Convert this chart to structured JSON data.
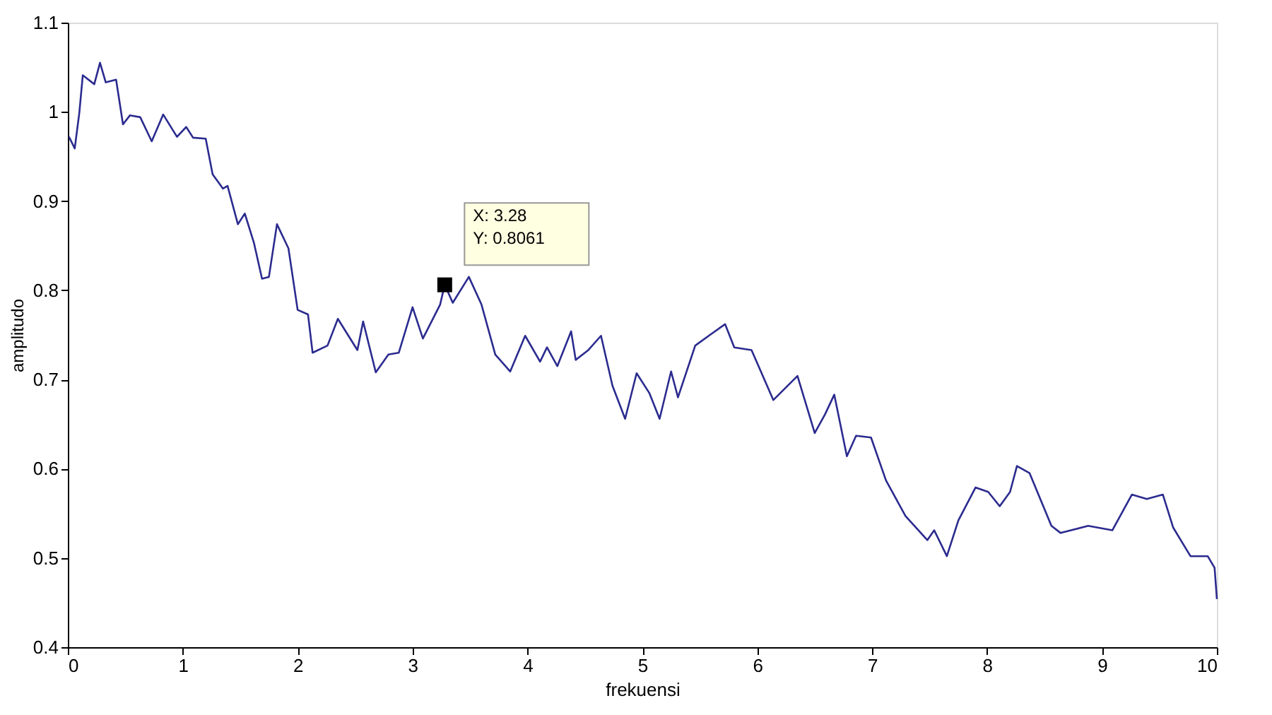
{
  "chart_data": {
    "type": "line",
    "xlabel": "frekuensi",
    "ylabel": "amplitudo",
    "xlim": [
      0,
      10
    ],
    "ylim": [
      0.4,
      1.1
    ],
    "xticks": [
      0,
      1,
      2,
      3,
      4,
      5,
      6,
      7,
      8,
      9,
      10
    ],
    "yticks": [
      0.4,
      0.5,
      0.6,
      0.7,
      0.8,
      0.9,
      1,
      1.1
    ],
    "grid": false,
    "marker": "none",
    "line_style": "solid",
    "annotations": [
      {
        "text": "X: 3.28\nY: 0.8061",
        "x": 3.28,
        "y": 0.8061
      }
    ],
    "series": [
      {
        "color": "#2b2b8f",
        "x": [
          0.01,
          0.06,
          0.1,
          0.13,
          0.23,
          0.28,
          0.33,
          0.42,
          0.48,
          0.54,
          0.63,
          0.73,
          0.83,
          0.95,
          1.03,
          1.09,
          1.2,
          1.26,
          1.35,
          1.39,
          1.48,
          1.54,
          1.62,
          1.69,
          1.75,
          1.82,
          1.92,
          2.0,
          2.09,
          2.13,
          2.26,
          2.35,
          2.52,
          2.57,
          2.68,
          2.79,
          2.88,
          3.0,
          3.09,
          3.24,
          3.28,
          3.35,
          3.49,
          3.6,
          3.72,
          3.85,
          3.98,
          4.11,
          4.17,
          4.26,
          4.38,
          4.42,
          4.53,
          4.64,
          4.74,
          4.85,
          4.95,
          5.06,
          5.15,
          5.25,
          5.31,
          5.46,
          5.61,
          5.72,
          5.8,
          5.95,
          6.14,
          6.35,
          6.5,
          6.59,
          6.67,
          6.78,
          6.86,
          6.99,
          7.12,
          7.29,
          7.48,
          7.54,
          7.65,
          7.75,
          7.9,
          8.01,
          8.11,
          8.2,
          8.26,
          8.37,
          8.56,
          8.64,
          8.88,
          9.09,
          9.26,
          9.39,
          9.53,
          9.62,
          9.77,
          9.92,
          9.98,
          10.0
        ],
        "values": [
          0.972,
          0.959,
          0.999,
          1.041,
          1.031,
          1.055,
          1.033,
          1.036,
          0.986,
          0.996,
          0.994,
          0.967,
          0.997,
          0.972,
          0.983,
          0.971,
          0.97,
          0.93,
          0.914,
          0.917,
          0.874,
          0.886,
          0.853,
          0.813,
          0.815,
          0.874,
          0.847,
          0.778,
          0.773,
          0.73,
          0.738,
          0.768,
          0.733,
          0.765,
          0.708,
          0.728,
          0.73,
          0.781,
          0.746,
          0.784,
          0.8061,
          0.786,
          0.815,
          0.784,
          0.728,
          0.709,
          0.749,
          0.72,
          0.736,
          0.715,
          0.754,
          0.722,
          0.733,
          0.749,
          0.693,
          0.656,
          0.707,
          0.685,
          0.656,
          0.709,
          0.68,
          0.738,
          0.752,
          0.762,
          0.736,
          0.733,
          0.677,
          0.704,
          0.64,
          0.661,
          0.683,
          0.614,
          0.637,
          0.635,
          0.587,
          0.547,
          0.52,
          0.531,
          0.502,
          0.542,
          0.579,
          0.574,
          0.558,
          0.574,
          0.603,
          0.595,
          0.536,
          0.528,
          0.536,
          0.531,
          0.571,
          0.566,
          0.571,
          0.534,
          0.502,
          0.502,
          0.489,
          0.454
        ]
      }
    ]
  }
}
